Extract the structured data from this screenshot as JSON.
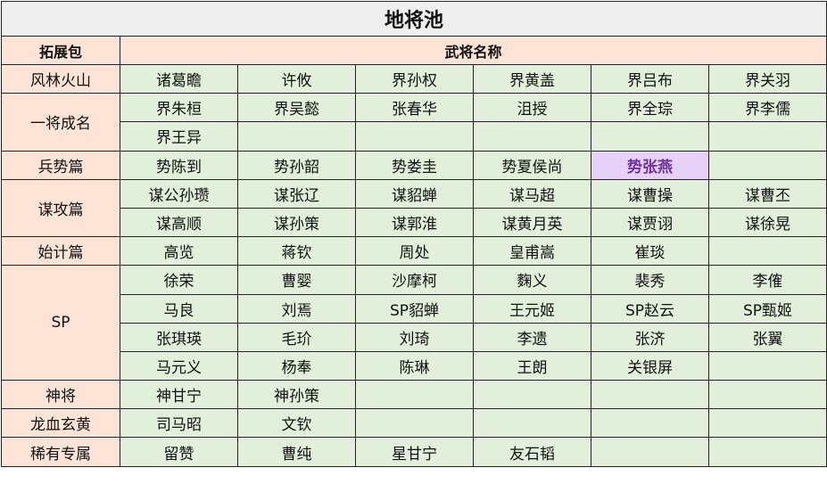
{
  "title": "地将池",
  "headers": {
    "pack": "拓展包",
    "generals": "武将名称"
  },
  "colors": {
    "pack_bg": "#fde4d6",
    "general_bg": "#e2efda",
    "title_bg": "#efefef",
    "highlight_bg": "#e6d1f7",
    "highlight_text": "#7030a0"
  },
  "highlighted": "势张燕",
  "packs": [
    {
      "name": "风林火山",
      "rows": [
        [
          "诸葛瞻",
          "许攸",
          "界孙权",
          "界黄盖",
          "界吕布",
          "界关羽"
        ]
      ]
    },
    {
      "name": "一将成名",
      "rows": [
        [
          "界朱桓",
          "界吴懿",
          "张春华",
          "沮授",
          "界全琮",
          "界李儒"
        ],
        [
          "界王异",
          "",
          "",
          "",
          "",
          ""
        ]
      ]
    },
    {
      "name": "兵势篇",
      "rows": [
        [
          "势陈到",
          "势孙韶",
          "势娄圭",
          "势夏侯尚",
          "势张燕",
          ""
        ]
      ]
    },
    {
      "name": "谋攻篇",
      "rows": [
        [
          "谋公孙瓒",
          "谋张辽",
          "谋貂蝉",
          "谋马超",
          "谋曹操",
          "谋曹丕"
        ],
        [
          "谋高顺",
          "谋孙策",
          "谋郭淮",
          "谋黄月英",
          "谋贾诩",
          "谋徐晃"
        ]
      ]
    },
    {
      "name": "始计篇",
      "rows": [
        [
          "高览",
          "蒋钦",
          "周处",
          "皇甫嵩",
          "崔琰",
          ""
        ]
      ]
    },
    {
      "name": "SP",
      "rows": [
        [
          "徐荣",
          "曹婴",
          "沙摩柯",
          "麴义",
          "裴秀",
          "李傕"
        ],
        [
          "马良",
          "刘焉",
          "SP貂蝉",
          "王元姬",
          "SP赵云",
          "SP甄姬"
        ],
        [
          "张琪瑛",
          "毛玠",
          "刘琦",
          "李遗",
          "张济",
          "张翼"
        ],
        [
          "马元义",
          "杨奉",
          "陈琳",
          "王朗",
          "关银屏",
          ""
        ]
      ]
    },
    {
      "name": "神将",
      "rows": [
        [
          "神甘宁",
          "神孙策",
          "",
          "",
          "",
          ""
        ]
      ]
    },
    {
      "name": "龙血玄黄",
      "rows": [
        [
          "司马昭",
          "文钦",
          "",
          "",
          "",
          ""
        ]
      ]
    },
    {
      "name": "稀有专属",
      "rows": [
        [
          "留赞",
          "曹纯",
          "星甘宁",
          "友石韬",
          "",
          ""
        ]
      ]
    }
  ]
}
